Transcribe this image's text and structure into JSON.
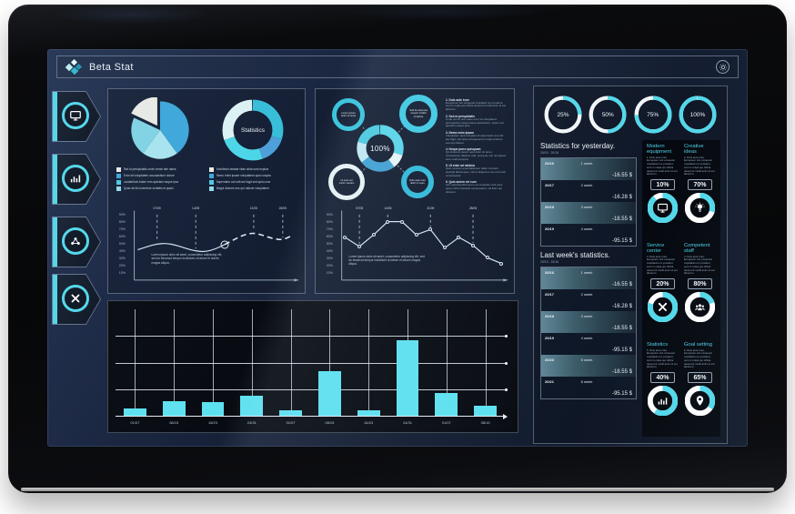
{
  "colors": {
    "accent": "#4fd8ea",
    "bar": "#5ce1ef",
    "blue": "#3ba6da",
    "pale": "#bfe9f2",
    "white": "#e9eae4"
  },
  "titlebar": {
    "app_name": "Beta Stat",
    "logo_colors": [
      "#bfeef2",
      "#e8fbfd",
      "#2cb8ce",
      "#1f93ab"
    ],
    "settings_icon": "gear"
  },
  "sidebar": {
    "items": [
      {
        "icon": "monitor"
      },
      {
        "icon": "bar-chart"
      },
      {
        "icon": "network"
      },
      {
        "icon": "close"
      }
    ]
  },
  "panel_pies": {
    "legend1": [
      {
        "color": "#e9eae4",
        "text": "Sed ut perspiciatis unde omnis iste natus"
      },
      {
        "color": "#3ba6da",
        "text": "Error sit voluptatem accusantium dolore"
      },
      {
        "color": "#49c9e2",
        "text": "Laudantium totam rem aperiam eaque ipsa"
      },
      {
        "color": "#8fdce8",
        "text": "Quae ab illo inventore veritatis et quasi"
      }
    ],
    "legend2": [
      {
        "color": "#e9eae4",
        "text": "Architecto beatae vitae dicta sunt explica"
      },
      {
        "color": "#3ba6da",
        "text": "Nemo enim ipsam voluptatem quia volupta"
      },
      {
        "color": "#49c9e2",
        "text": "Aspernatur aut odit aut fugit sed quia cons"
      },
      {
        "color": "#8fdce8",
        "text": "Magni dolores eos qui ratione voluptatem"
      }
    ]
  },
  "panel_b": {
    "satellites": [
      {
        "color": "#35c3dc",
        "lines": [
          "Lorem ipsum",
          "dolor sit amet"
        ]
      },
      {
        "color": "#3ec9e2",
        "lines": [
          "Sed do eiusmod",
          "tempor incidid",
          "ut labore"
        ]
      },
      {
        "color": "#e8f2f4",
        "lines": [
          "Ut enim ad",
          "minim veniam"
        ]
      },
      {
        "color": "#2fb9d8",
        "lines": [
          "Duis aute irure",
          "dolor in repre"
        ]
      }
    ],
    "sections": [
      {
        "h": "1. Duis aute irure",
        "t": "Excepteur sint occaecat cupidatat non proident, sunt in culpa qui officia deserunt mollit anim id est laborum."
      },
      {
        "h": "2. Sed ut perspiciatis",
        "t": "Unde omnis iste natus error sit voluptatem accusantium doloremque laudantium, totam rem aperiam eaque ipsa."
      },
      {
        "h": "3. Nemo enim ipsam",
        "t": "Voluptatem quia voluptas sit aspernatur aut odit aut fugit, sed quia consequuntur magni dolores eos qui ratione."
      },
      {
        "h": "4. Neque porro quisquam",
        "t": "Qui dolorem ipsum quia dolor sit amet, consectetur, adipisci velit, sed quia non numquam eius modi tempora."
      },
      {
        "h": "5. Ut enim ad minima",
        "t": "Quis nostrum exercitationem ullam corporis suscipit laboriosam, nisi ut aliquid ex ea commodi consequatur."
      },
      {
        "h": "6. Quis autem vel eum",
        "t": "Iure reprehenderit qui in ea voluptate velit esse quam nihil molestiae consequatur, vel illum qui dolorem."
      }
    ]
  },
  "right_panel": {
    "rings": [
      {
        "label": "25%",
        "percent": 25
      },
      {
        "label": "50%",
        "percent": 50
      },
      {
        "label": "75%",
        "percent": 75
      },
      {
        "label": "100%",
        "percent": 100
      }
    ],
    "table1": {
      "title": "Statistics for yesterday.",
      "subtitle": "20/19 - 20/16",
      "rows": [
        {
          "date": "20/16",
          "week": "1 week",
          "value": "-16.55 $"
        },
        {
          "date": "20/17",
          "week": "2 week",
          "value": "-16.28 $"
        },
        {
          "date": "20/18",
          "week": "3 week",
          "value": "-18.55 $"
        },
        {
          "date": "20/19",
          "week": "4 week",
          "value": "-95.15 $"
        }
      ]
    },
    "table2": {
      "title": "Last week's statistics.",
      "subtitle": "20/19 - 20/16",
      "rows": [
        {
          "date": "20/16",
          "week": "1 week",
          "value": "-16.55 $"
        },
        {
          "date": "20/17",
          "week": "2 week",
          "value": "-16.28 $"
        },
        {
          "date": "20/18",
          "week": "3 week",
          "value": "-18.55 $"
        },
        {
          "date": "20/19",
          "week": "4 week",
          "value": "-95.15 $"
        },
        {
          "date": "20/20",
          "week": "5 week",
          "value": "-18.55 $"
        },
        {
          "date": "20/21",
          "week": "6 week",
          "value": "-95.15 $"
        }
      ]
    },
    "cards": [
      {
        "title": "Modern equipment",
        "percent": "10%",
        "icon": "monitor",
        "body": "1. Duis aute irure. Excepteur sint occaecat cupidatat non proident, sunt in culpa qui officia deserunt mollit anim id est laborum."
      },
      {
        "title": "Creative ideas",
        "percent": "70%",
        "icon": "lightbulb",
        "body": "2. Duis aute irure. Excepteur sint occaecat cupidatat non proident, sunt in culpa qui officia deserunt mollit anim id est laborum."
      },
      {
        "title": "Service center",
        "percent": "20%",
        "icon": "tools",
        "body": "3. Duis aute irure. Excepteur sint occaecat cupidatat non proident, sunt in culpa qui officia deserunt mollit anim id est laborum."
      },
      {
        "title": "Competent staff",
        "percent": "80%",
        "icon": "people",
        "body": "4. Duis aute irure. Excepteur sint occaecat cupidatat non proident, sunt in culpa qui officia deserunt mollit anim id est laborum."
      },
      {
        "title": "Statistics",
        "percent": "40%",
        "icon": "bar-chart",
        "body": "5. Duis aute irure. Excepteur sint occaecat cupidatat non proident, sunt in culpa qui officia deserunt mollit anim id est laborum."
      },
      {
        "title": "Goal setting",
        "percent": "65%",
        "icon": "pin",
        "body": "6. Duis aute irure. Excepteur sint occaecat cupidatat non proident, sunt in culpa qui officia deserunt mollit anim id est laborum."
      }
    ]
  },
  "chart_data": [
    {
      "id": "overview-pie",
      "type": "pie",
      "values": [
        40,
        20,
        22,
        18
      ],
      "colors": [
        "#3ba6da",
        "#a8e4ee",
        "#7fd4e4",
        "#e9eae4"
      ],
      "exploded_index": 3
    },
    {
      "id": "statistics-donut",
      "type": "pie",
      "donut": true,
      "center_label": "Statistics",
      "values": [
        30,
        15,
        25,
        30
      ],
      "colors": [
        "#35bdd8",
        "#4a9fd8",
        "#49d6e8",
        "#ddf2f4"
      ]
    },
    {
      "id": "left-trend",
      "type": "line",
      "style": "smooth",
      "values": [
        45,
        50,
        54,
        55,
        52,
        47,
        43,
        42,
        46,
        53,
        61,
        68,
        71,
        67,
        62,
        60,
        67
      ],
      "dash_from": 9,
      "marker_index": 9,
      "callouts": [
        {
          "i": 2,
          "label": "07/05"
        },
        {
          "i": 6,
          "label": "14/05"
        },
        {
          "i": 12,
          "label": "21/05"
        },
        {
          "i": 15,
          "label": "28/05"
        }
      ],
      "annotation": "Lorem ipsum dolor sit amet, consectetur adipiscing elit, sed do eiusmod tempor incididunt ut labore et dolore magna aliqua.",
      "ylabels": [
        "90%",
        "80%",
        "70%",
        "60%",
        "50%",
        "40%",
        "30%",
        "20%",
        "10%"
      ],
      "ylim": [
        0,
        100
      ]
    },
    {
      "id": "progress-hub",
      "type": "pie",
      "donut": true,
      "center_label": "100%",
      "values": [
        30,
        10,
        25,
        15,
        20
      ],
      "colors": [
        "#57d4e8",
        "#e8f6f8",
        "#3e9fd0",
        "#bfe9f2",
        "#49c9e0"
      ]
    },
    {
      "id": "middle-trend",
      "type": "line",
      "style": "straight",
      "markers": true,
      "values": [
        64,
        50,
        68,
        88,
        88,
        68,
        76,
        48,
        64,
        52,
        33,
        24
      ],
      "callouts": [
        {
          "i": 1,
          "label": "07/05"
        },
        {
          "i": 3,
          "label": "14/05"
        },
        {
          "i": 6,
          "label": "21/05"
        },
        {
          "i": 9,
          "label": "28/05"
        }
      ],
      "annotation": "Lorem ipsum dolor sit amet, consectetur adipiscing elit, sed do eiusmod tempor incididunt ut labore et dolore magna aliqua.",
      "ylabels": [
        "90%",
        "80%",
        "70%",
        "60%",
        "50%",
        "40%",
        "30%",
        "20%",
        "10%"
      ],
      "ylim": [
        0,
        100
      ]
    },
    {
      "id": "monthly-bars",
      "type": "bar",
      "categories": [
        "01/07",
        "08/15",
        "16/23",
        "24/31",
        "01/07",
        "08/15",
        "16/23",
        "24/31",
        "01/07",
        "08/15"
      ],
      "values": [
        7,
        14,
        13,
        19,
        5,
        42,
        5,
        71,
        21,
        9
      ],
      "bar_color": "#5ce1ef",
      "ylim": [
        0,
        100
      ],
      "grid": true
    }
  ]
}
